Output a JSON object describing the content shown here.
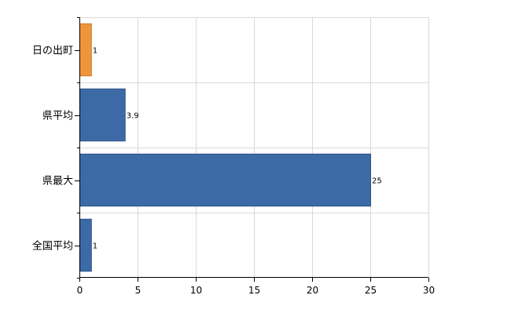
{
  "chart_data": {
    "type": "bar",
    "orientation": "horizontal",
    "categories": [
      "日の出町",
      "県平均",
      "県最大",
      "全国平均"
    ],
    "values": [
      1,
      3.9,
      25,
      1
    ],
    "data_labels": [
      "1",
      "3.9",
      "25",
      "1"
    ],
    "bar_colors": [
      "#f0963a",
      "#3c6aa6",
      "#3c6aa6",
      "#3c6aa6"
    ],
    "bar_edge_color": "#2f5486",
    "highlight_edge_color": "#d07b26",
    "xlim": [
      0,
      30
    ],
    "xticks": [
      0,
      5,
      10,
      15,
      20,
      25,
      30
    ],
    "xtick_labels": [
      "0",
      "5",
      "10",
      "15",
      "20",
      "25",
      "30"
    ],
    "grid": true,
    "legend": "none",
    "title": "",
    "xlabel": "",
    "ylabel": ""
  }
}
